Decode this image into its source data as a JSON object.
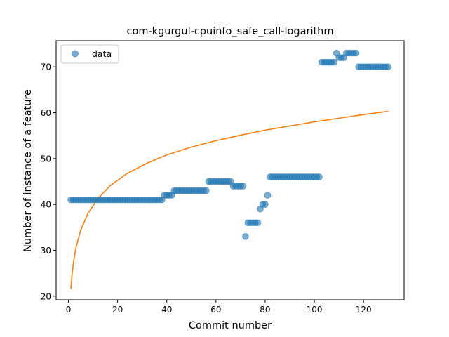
{
  "chart_data": {
    "type": "scatter",
    "title": "com-kgurgul-cpuinfo_safe_call-logarithm",
    "xlabel": "Commit number",
    "ylabel": "Number of instance of a feature",
    "xlim": [
      -5,
      136.5
    ],
    "ylim": [
      19.2,
      75.7
    ],
    "x_ticks": [
      0,
      20,
      40,
      60,
      80,
      100,
      120
    ],
    "y_ticks": [
      20,
      30,
      40,
      50,
      60,
      70
    ],
    "grid": false,
    "legend": {
      "placement": "top-left",
      "entries": [
        "data"
      ]
    },
    "series": [
      {
        "name": "data",
        "kind": "scatter",
        "color": "#1f77b4",
        "points": [
          [
            1,
            41
          ],
          [
            2,
            41
          ],
          [
            3,
            41
          ],
          [
            4,
            41
          ],
          [
            5,
            41
          ],
          [
            6,
            41
          ],
          [
            7,
            41
          ],
          [
            8,
            41
          ],
          [
            9,
            41
          ],
          [
            10,
            41
          ],
          [
            11,
            41
          ],
          [
            12,
            41
          ],
          [
            13,
            41
          ],
          [
            14,
            41
          ],
          [
            15,
            41
          ],
          [
            16,
            41
          ],
          [
            17,
            41
          ],
          [
            18,
            41
          ],
          [
            19,
            41
          ],
          [
            20,
            41
          ],
          [
            21,
            41
          ],
          [
            22,
            41
          ],
          [
            23,
            41
          ],
          [
            24,
            41
          ],
          [
            25,
            41
          ],
          [
            26,
            41
          ],
          [
            27,
            41
          ],
          [
            28,
            41
          ],
          [
            29,
            41
          ],
          [
            30,
            41
          ],
          [
            31,
            41
          ],
          [
            32,
            41
          ],
          [
            33,
            41
          ],
          [
            34,
            41
          ],
          [
            35,
            41
          ],
          [
            36,
            41
          ],
          [
            37,
            41
          ],
          [
            38,
            41
          ],
          [
            39,
            42
          ],
          [
            40,
            42
          ],
          [
            41,
            42
          ],
          [
            42,
            42
          ],
          [
            43,
            43
          ],
          [
            44,
            43
          ],
          [
            45,
            43
          ],
          [
            46,
            43
          ],
          [
            47,
            43
          ],
          [
            48,
            43
          ],
          [
            49,
            43
          ],
          [
            50,
            43
          ],
          [
            51,
            43
          ],
          [
            52,
            43
          ],
          [
            53,
            43
          ],
          [
            54,
            43
          ],
          [
            55,
            43
          ],
          [
            56,
            43
          ],
          [
            57,
            45
          ],
          [
            58,
            45
          ],
          [
            59,
            45
          ],
          [
            60,
            45
          ],
          [
            61,
            45
          ],
          [
            62,
            45
          ],
          [
            63,
            45
          ],
          [
            64,
            45
          ],
          [
            65,
            45
          ],
          [
            66,
            45
          ],
          [
            67,
            44
          ],
          [
            68,
            44
          ],
          [
            69,
            44
          ],
          [
            70,
            44
          ],
          [
            71,
            44
          ],
          [
            72,
            33
          ],
          [
            73,
            36
          ],
          [
            74,
            36
          ],
          [
            75,
            36
          ],
          [
            76,
            36
          ],
          [
            77,
            36
          ],
          [
            78,
            39
          ],
          [
            79,
            40
          ],
          [
            80,
            40
          ],
          [
            81,
            42
          ],
          [
            82,
            46
          ],
          [
            83,
            46
          ],
          [
            84,
            46
          ],
          [
            85,
            46
          ],
          [
            86,
            46
          ],
          [
            87,
            46
          ],
          [
            88,
            46
          ],
          [
            89,
            46
          ],
          [
            90,
            46
          ],
          [
            91,
            46
          ],
          [
            92,
            46
          ],
          [
            93,
            46
          ],
          [
            94,
            46
          ],
          [
            95,
            46
          ],
          [
            96,
            46
          ],
          [
            97,
            46
          ],
          [
            98,
            46
          ],
          [
            99,
            46
          ],
          [
            100,
            46
          ],
          [
            101,
            46
          ],
          [
            102,
            46
          ],
          [
            103,
            71
          ],
          [
            104,
            71
          ],
          [
            105,
            71
          ],
          [
            106,
            71
          ],
          [
            107,
            71
          ],
          [
            108,
            71
          ],
          [
            109,
            73
          ],
          [
            110,
            72
          ],
          [
            111,
            72
          ],
          [
            112,
            72
          ],
          [
            113,
            73
          ],
          [
            114,
            73
          ],
          [
            115,
            73
          ],
          [
            116,
            73
          ],
          [
            117,
            73
          ],
          [
            118,
            70
          ],
          [
            119,
            70
          ],
          [
            120,
            70
          ],
          [
            121,
            70
          ],
          [
            122,
            70
          ],
          [
            123,
            70
          ],
          [
            124,
            70
          ],
          [
            125,
            70
          ],
          [
            126,
            70
          ],
          [
            127,
            70
          ],
          [
            128,
            70
          ],
          [
            129,
            70
          ],
          [
            130,
            70
          ]
        ]
      },
      {
        "kind": "line",
        "color": "#ff7f0e",
        "model": "logarithmic fit",
        "points": [
          [
            1,
            21.6
          ],
          [
            1.5,
            24.8
          ],
          [
            2,
            27.1
          ],
          [
            3,
            30.4
          ],
          [
            5,
            34.4
          ],
          [
            8,
            38.1
          ],
          [
            12,
            41.3
          ],
          [
            17,
            44.1
          ],
          [
            24,
            46.8
          ],
          [
            32,
            49.0
          ],
          [
            40,
            50.8
          ],
          [
            50,
            52.5
          ],
          [
            60,
            53.9
          ],
          [
            70,
            55.1
          ],
          [
            80,
            56.2
          ],
          [
            90,
            57.1
          ],
          [
            100,
            58.0
          ],
          [
            110,
            58.8
          ],
          [
            120,
            59.6
          ],
          [
            130,
            60.3
          ]
        ]
      }
    ]
  }
}
